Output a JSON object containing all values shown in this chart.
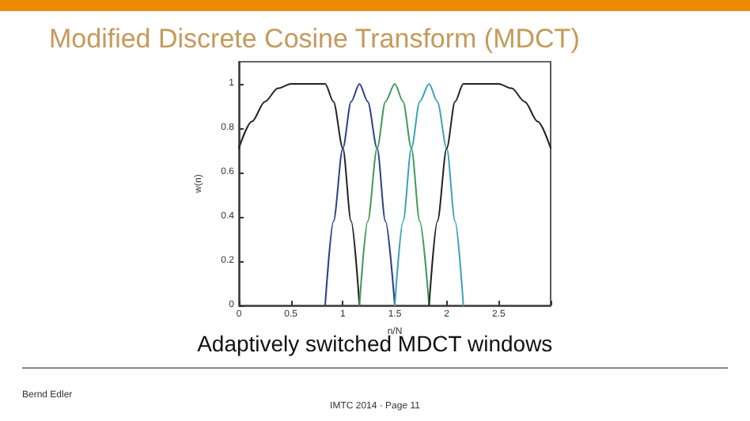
{
  "chart_data": {
    "type": "line",
    "title": "Modified Discrete Cosine Transform (MDCT)",
    "xlabel": "n/N",
    "ylabel": "w(n)",
    "annotations": [
      "Adaptively switched MDCT windows",
      "Bernd Edler",
      "IMTC 2014 · Page 11"
    ],
    "xlim": [
      0,
      3
    ],
    "xticks": [
      0,
      0.5,
      1,
      1.5,
      2,
      2.5,
      {
        "value": 3,
        "label": null
      }
    ],
    "ylim": [
      0,
      1.1
    ],
    "yticks": [
      0,
      0.2,
      0.4,
      0.6,
      0.8,
      1
    ],
    "grid": false,
    "marker": "none",
    "line_style": "solid",
    "series": [
      {
        "color": "#222222",
        "x": [
          0,
          0.125,
          0.25,
          0.375,
          0.5,
          0.83,
          0.91,
          1.0,
          1.08,
          1.16
        ],
        "values": [
          0.71,
          0.83,
          0.92,
          0.98,
          1,
          1,
          0.92,
          0.71,
          0.38,
          0
        ]
      },
      {
        "color": "#2b3f8c",
        "x": [
          0.83,
          0.91,
          1.0,
          1.08,
          1.16,
          1.24,
          1.33,
          1.41,
          1.5
        ],
        "values": [
          0,
          0.38,
          0.71,
          0.92,
          1,
          0.92,
          0.71,
          0.38,
          0
        ]
      },
      {
        "color": "#3f9a5a",
        "x": [
          1.16,
          1.24,
          1.33,
          1.41,
          1.5,
          1.58,
          1.66,
          1.74,
          1.83
        ],
        "values": [
          0,
          0.38,
          0.71,
          0.92,
          1,
          0.92,
          0.71,
          0.38,
          0
        ]
      },
      {
        "color": "#3aa3b8",
        "x": [
          1.5,
          1.58,
          1.66,
          1.74,
          1.83,
          1.91,
          2.0,
          2.08,
          2.16
        ],
        "values": [
          0,
          0.38,
          0.71,
          0.92,
          1,
          0.92,
          0.71,
          0.38,
          0
        ]
      },
      {
        "color": "#222222",
        "x": [
          1.83,
          1.91,
          2.0,
          2.08,
          2.16,
          2.5,
          2.625,
          2.75,
          2.875,
          3.0
        ],
        "values": [
          0,
          0.38,
          0.71,
          0.92,
          1,
          1,
          0.98,
          0.92,
          0.83,
          0.71
        ]
      }
    ]
  }
}
